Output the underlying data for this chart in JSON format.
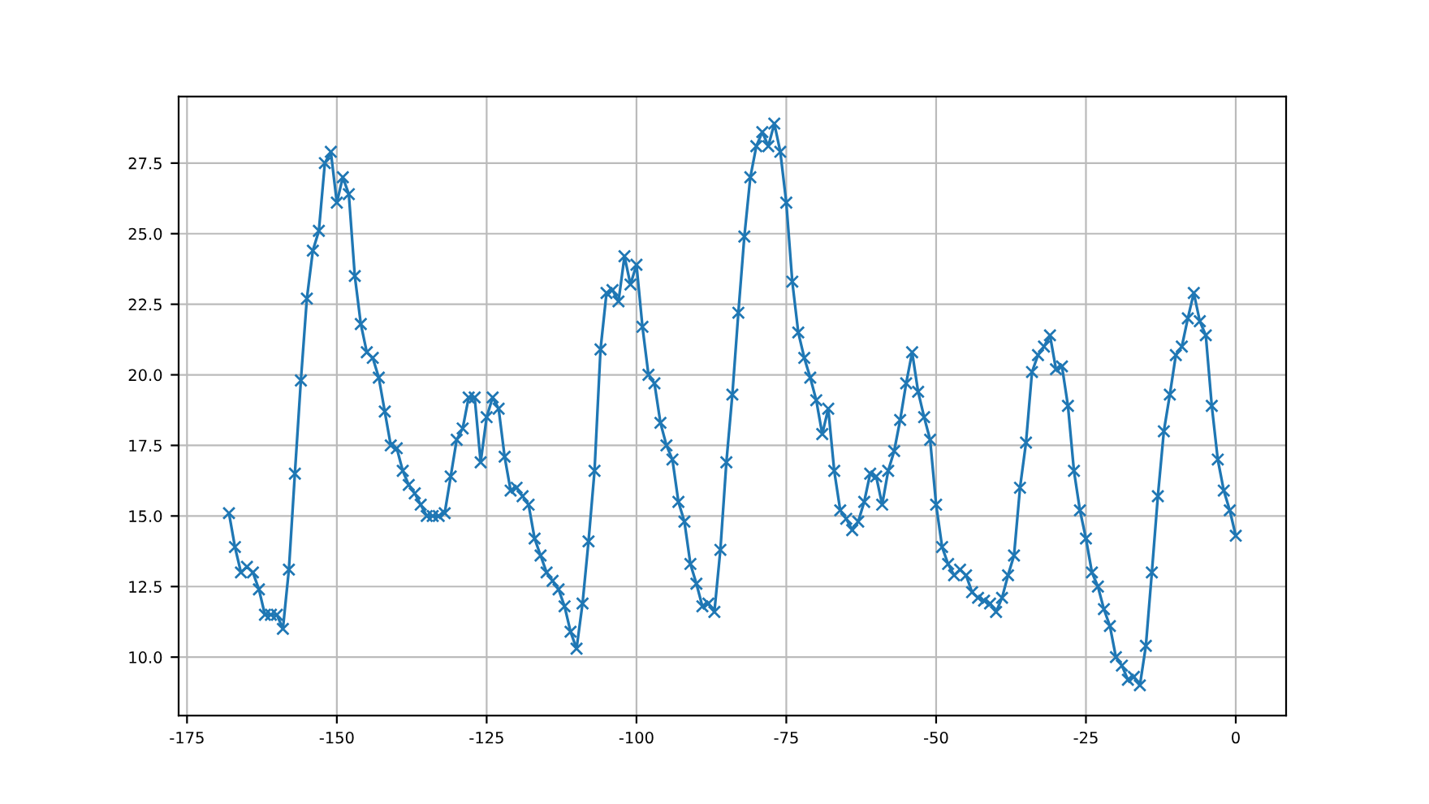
{
  "chart_data": {
    "type": "line",
    "marker": "cross",
    "line_style": "solid",
    "grid": true,
    "x": [
      -168,
      -167,
      -166,
      -165,
      -164,
      -163,
      -162,
      -161,
      -160,
      -159,
      -158,
      -157,
      -156,
      -155,
      -154,
      -153,
      -152,
      -151,
      -150,
      -149,
      -148,
      -147,
      -146,
      -145,
      -144,
      -143,
      -142,
      -141,
      -140,
      -139,
      -138,
      -137,
      -136,
      -135,
      -134,
      -133,
      -132,
      -131,
      -130,
      -129,
      -128,
      -127,
      -126,
      -125,
      -124,
      -123,
      -122,
      -121,
      -120,
      -119,
      -118,
      -117,
      -116,
      -115,
      -114,
      -113,
      -112,
      -111,
      -110,
      -109,
      -108,
      -107,
      -106,
      -105,
      -104,
      -103,
      -102,
      -101,
      -100,
      -99,
      -98,
      -97,
      -96,
      -95,
      -94,
      -93,
      -92,
      -91,
      -90,
      -89,
      -88,
      -87,
      -86,
      -85,
      -84,
      -83,
      -82,
      -81,
      -80,
      -79,
      -78,
      -77,
      -76,
      -75,
      -74,
      -73,
      -72,
      -71,
      -70,
      -69,
      -68,
      -67,
      -66,
      -65,
      -64,
      -63,
      -62,
      -61,
      -60,
      -59,
      -58,
      -57,
      -56,
      -55,
      -54,
      -53,
      -52,
      -51,
      -50,
      -49,
      -48,
      -47,
      -46,
      -45,
      -44,
      -43,
      -42,
      -41,
      -40,
      -39,
      -38,
      -37,
      -36,
      -35,
      -34,
      -33,
      -32,
      -31,
      -30,
      -29,
      -28,
      -27,
      -26,
      -25,
      -24,
      -23,
      -22,
      -21,
      -20,
      -19,
      -18,
      -17,
      -16,
      -15,
      -14,
      -13,
      -12,
      -11,
      -10,
      -9,
      -8,
      -7,
      -6,
      -5,
      -4,
      -3,
      -2,
      -1,
      0
    ],
    "series": [
      {
        "color": "#1f77b4",
        "values": [
          15.1,
          13.9,
          13.0,
          13.2,
          13.0,
          12.4,
          11.5,
          11.5,
          11.5,
          11.0,
          13.1,
          16.5,
          19.8,
          22.7,
          24.4,
          25.1,
          27.5,
          27.9,
          26.1,
          27.0,
          26.4,
          23.5,
          21.8,
          20.8,
          20.6,
          19.9,
          18.7,
          17.5,
          17.4,
          16.6,
          16.1,
          15.8,
          15.4,
          15.0,
          15.0,
          15.0,
          15.1,
          16.4,
          17.7,
          18.1,
          19.2,
          19.2,
          16.9,
          18.5,
          19.2,
          18.8,
          17.1,
          15.9,
          16.0,
          15.7,
          15.4,
          14.2,
          13.6,
          13.0,
          12.7,
          12.4,
          11.8,
          10.9,
          10.3,
          11.9,
          14.1,
          16.6,
          20.9,
          22.9,
          23.0,
          22.6,
          24.2,
          23.2,
          23.9,
          21.7,
          20.0,
          19.7,
          18.3,
          17.5,
          17.0,
          15.5,
          14.8,
          13.3,
          12.6,
          11.8,
          11.9,
          11.6,
          13.8,
          16.9,
          19.3,
          22.2,
          24.9,
          27.0,
          28.1,
          28.6,
          28.1,
          28.9,
          27.9,
          26.1,
          23.3,
          21.5,
          20.6,
          19.9,
          19.1,
          17.9,
          18.8,
          16.6,
          15.2,
          14.9,
          14.5,
          14.8,
          15.5,
          16.5,
          16.4,
          15.4,
          16.6,
          17.3,
          18.4,
          19.7,
          20.8,
          19.4,
          18.5,
          17.7,
          15.4,
          13.9,
          13.3,
          12.9,
          13.1,
          12.9,
          12.3,
          12.1,
          12.0,
          11.9,
          11.6,
          12.1,
          12.9,
          13.6,
          16.0,
          17.6,
          20.1,
          20.7,
          21.0,
          21.4,
          20.2,
          20.3,
          18.9,
          16.6,
          15.2,
          14.2,
          13.0,
          12.5,
          11.7,
          11.1,
          10.0,
          9.7,
          9.2,
          9.3,
          9.0,
          10.4,
          13.0,
          15.7,
          18.0,
          19.3,
          20.7,
          21.0,
          22.0,
          22.9,
          21.9,
          21.4,
          18.9,
          17.0,
          15.9,
          15.2,
          14.3
        ]
      }
    ],
    "xlim": [
      -176.4,
      8.4
    ],
    "ylim": [
      7.93,
      29.86
    ],
    "xticks": [
      -175,
      -150,
      -125,
      -100,
      -75,
      -50,
      -25,
      0
    ],
    "yticks": [
      {
        "value": 10,
        "label": "10.0"
      },
      {
        "value": 12.5,
        "label": "12.5"
      },
      {
        "value": 15,
        "label": "15.0"
      },
      {
        "value": 17.5,
        "label": "17.5"
      },
      {
        "value": 20,
        "label": "20.0"
      },
      {
        "value": 22.5,
        "label": "22.5"
      },
      {
        "value": 25,
        "label": "25.0"
      },
      {
        "value": 27.5,
        "label": "27.5"
      }
    ]
  }
}
